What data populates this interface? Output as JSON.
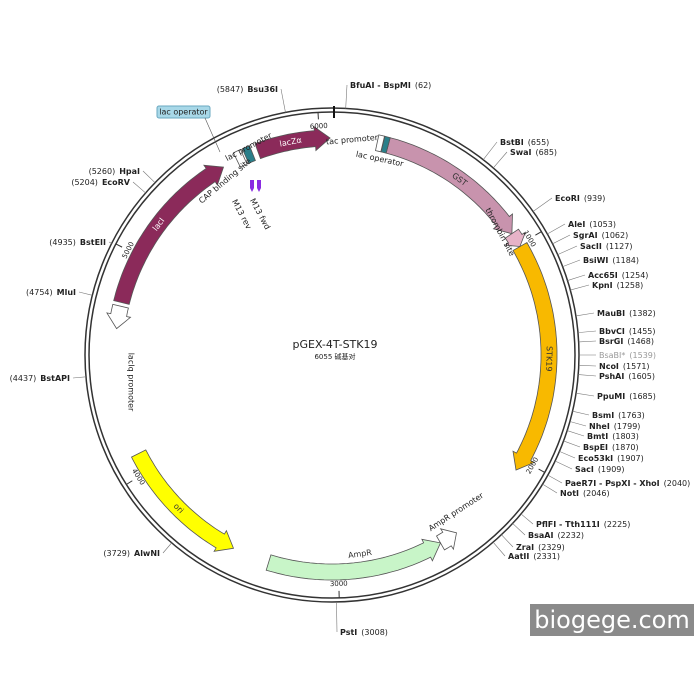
{
  "title": "pGEX-4T-STK19",
  "subtitle": "6055 碱基对",
  "features": [
    "lacZα",
    "GST",
    "thrombin site",
    "STK19",
    "AmpR",
    "AmpR promoter",
    "ori",
    "lacI",
    "lacIq promoter"
  ],
  "annotations": [
    "tac promoter",
    "lac operator",
    "lac promoter",
    "CAP binding site",
    "lac operator",
    "M13 rev",
    "M13 fwd"
  ],
  "ticks": [
    "1000",
    "2000",
    "3000",
    "4000",
    "5000",
    "6000"
  ],
  "sites": [
    {
      "name": "BfuAI - BspMI",
      "position": "(62)"
    },
    {
      "name": "BstBI",
      "position": "(655)"
    },
    {
      "name": "SwaI",
      "position": "(685)"
    },
    {
      "name": "EcoRI",
      "position": "(939)"
    },
    {
      "name": "AleI",
      "position": "(1053)"
    },
    {
      "name": "SgrAI",
      "position": "(1062)"
    },
    {
      "name": "SacII",
      "position": "(1127)"
    },
    {
      "name": "BsiWI",
      "position": "(1184)"
    },
    {
      "name": "Acc65I",
      "position": "(1254)"
    },
    {
      "name": "KpnI",
      "position": "(1258)"
    },
    {
      "name": "MauBI",
      "position": "(1382)"
    },
    {
      "name": "BbvCI",
      "position": "(1455)"
    },
    {
      "name": "BsrGI",
      "position": "(1468)"
    },
    {
      "name": "BsaBI*",
      "position": "(1539)",
      "color": "#999999"
    },
    {
      "name": "NcoI",
      "position": "(1571)"
    },
    {
      "name": "PshAI",
      "position": "(1605)"
    },
    {
      "name": "PpuMI",
      "position": "(1685)"
    },
    {
      "name": "BsmI",
      "position": "(1763)"
    },
    {
      "name": "NheI",
      "position": "(1799)"
    },
    {
      "name": "BmtI",
      "position": "(1803)"
    },
    {
      "name": "BspEI",
      "position": "(1870)"
    },
    {
      "name": "Eco53kI",
      "position": "(1907)"
    },
    {
      "name": "SacI",
      "position": "(1909)"
    },
    {
      "name": "PaeR7I - PspXI - XhoI",
      "position": "(2040)"
    },
    {
      "name": "NotI",
      "position": "(2046)"
    },
    {
      "name": "PflFI - Tth111I",
      "position": "(2225)"
    },
    {
      "name": "BsaAI",
      "position": "(2232)"
    },
    {
      "name": "ZraI",
      "position": "(2329)"
    },
    {
      "name": "AatII",
      "position": "(2331)"
    },
    {
      "name": "PstI",
      "position": "(3008)"
    },
    {
      "name": "AlwNI",
      "position": "(3729)"
    },
    {
      "name": "BstAPI",
      "position": "(4437)"
    },
    {
      "name": "MluI",
      "position": "(4754)"
    },
    {
      "name": "BstEII",
      "position": "(4935)"
    },
    {
      "name": "EcoRV",
      "position": "(5204)"
    },
    {
      "name": "HpaI",
      "position": "(5260)"
    },
    {
      "name": "Bsu36I",
      "position": "(5847)"
    }
  ],
  "watermark": "biogege.com"
}
